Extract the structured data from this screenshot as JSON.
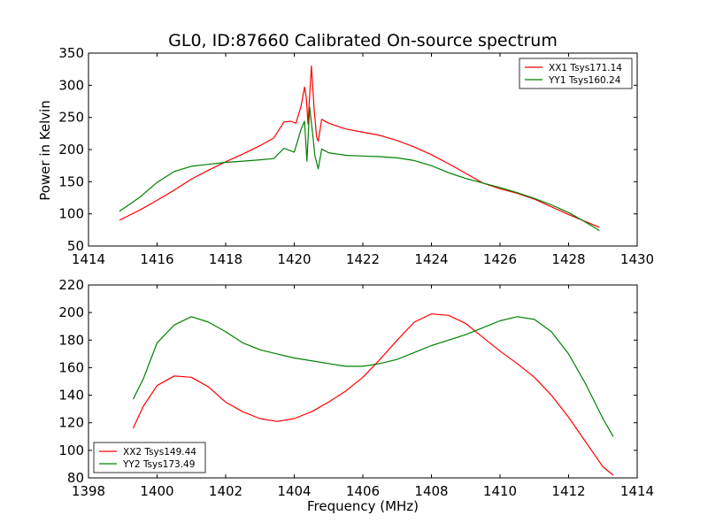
{
  "chart_data": [
    {
      "type": "line",
      "title": "GL0, ID:87660 Calibrated On-source spectrum",
      "xlabel": "",
      "ylabel": "Power in Kelvin",
      "xlim": [
        1414,
        1430
      ],
      "ylim": [
        50,
        350
      ],
      "xticks": [
        "1414",
        "1416",
        "1418",
        "1420",
        "1422",
        "1424",
        "1426",
        "1428",
        "1430"
      ],
      "yticks": [
        "50",
        "100",
        "150",
        "200",
        "250",
        "300",
        "350"
      ],
      "legend_position": "top-right",
      "grid": false,
      "series": [
        {
          "name": "XX1 Tsys171.14",
          "color": "#ff0000",
          "points": [
            [
              1414.9,
              90
            ],
            [
              1415.5,
              106
            ],
            [
              1416,
              121
            ],
            [
              1416.5,
              137
            ],
            [
              1417,
              154
            ],
            [
              1417.5,
              168
            ],
            [
              1418,
              181
            ],
            [
              1418.5,
              193
            ],
            [
              1419,
              206
            ],
            [
              1419.4,
              218
            ],
            [
              1419.7,
              243
            ],
            [
              1419.9,
              244
            ],
            [
              1420.05,
              241
            ],
            [
              1420.2,
              268
            ],
            [
              1420.3,
              297
            ],
            [
              1420.35,
              281
            ],
            [
              1420.4,
              240
            ],
            [
              1420.5,
              330
            ],
            [
              1420.58,
              262
            ],
            [
              1420.65,
              220
            ],
            [
              1420.7,
              213
            ],
            [
              1420.8,
              247
            ],
            [
              1421,
              241
            ],
            [
              1421.5,
              232
            ],
            [
              1422,
              227
            ],
            [
              1422.5,
              222
            ],
            [
              1423,
              214
            ],
            [
              1423.5,
              204
            ],
            [
              1424,
              192
            ],
            [
              1424.5,
              178
            ],
            [
              1425,
              163
            ],
            [
              1425.5,
              148
            ],
            [
              1426,
              139
            ],
            [
              1426.5,
              132
            ],
            [
              1427,
              123
            ],
            [
              1427.5,
              111
            ],
            [
              1428,
              99
            ],
            [
              1428.5,
              88
            ],
            [
              1428.9,
              79
            ]
          ]
        },
        {
          "name": "YY1 Tsys160.24",
          "color": "#008000",
          "points": [
            [
              1414.9,
              104
            ],
            [
              1415.5,
              126
            ],
            [
              1416,
              149
            ],
            [
              1416.5,
              166
            ],
            [
              1417,
              174
            ],
            [
              1417.5,
              177
            ],
            [
              1418,
              180
            ],
            [
              1418.5,
              182
            ],
            [
              1419,
              184
            ],
            [
              1419.4,
              186
            ],
            [
              1419.7,
              202
            ],
            [
              1420,
              196
            ],
            [
              1420.2,
              232
            ],
            [
              1420.3,
              244
            ],
            [
              1420.37,
              182
            ],
            [
              1420.45,
              266
            ],
            [
              1420.55,
              218
            ],
            [
              1420.6,
              191
            ],
            [
              1420.7,
              170
            ],
            [
              1420.8,
              201
            ],
            [
              1421,
              195
            ],
            [
              1421.5,
              191
            ],
            [
              1422,
              190
            ],
            [
              1422.5,
              189
            ],
            [
              1423,
              187
            ],
            [
              1423.5,
              183
            ],
            [
              1424,
              175
            ],
            [
              1424.5,
              164
            ],
            [
              1425,
              155
            ],
            [
              1425.5,
              148
            ],
            [
              1426,
              141
            ],
            [
              1426.5,
              133
            ],
            [
              1427,
              124
            ],
            [
              1427.5,
              114
            ],
            [
              1428,
              102
            ],
            [
              1428.5,
              87
            ],
            [
              1428.9,
              74
            ]
          ]
        }
      ]
    },
    {
      "type": "line",
      "title": "",
      "xlabel": "Frequency (MHz)",
      "ylabel": "",
      "xlim": [
        1398,
        1414
      ],
      "ylim": [
        80,
        220
      ],
      "xticks": [
        "1398",
        "1400",
        "1402",
        "1404",
        "1406",
        "1408",
        "1410",
        "1412",
        "1414"
      ],
      "yticks": [
        "80",
        "100",
        "120",
        "140",
        "160",
        "180",
        "200",
        "220"
      ],
      "legend_position": "bottom-left",
      "grid": false,
      "series": [
        {
          "name": "XX2 Tsys149.44",
          "color": "#ff0000",
          "points": [
            [
              1399.3,
              116
            ],
            [
              1399.6,
              132
            ],
            [
              1400,
              147
            ],
            [
              1400.5,
              154
            ],
            [
              1401,
              153
            ],
            [
              1401.5,
              146
            ],
            [
              1402,
              135
            ],
            [
              1402.5,
              128
            ],
            [
              1403,
              123
            ],
            [
              1403.5,
              121
            ],
            [
              1404,
              123
            ],
            [
              1404.5,
              128
            ],
            [
              1405,
              135
            ],
            [
              1405.5,
              143
            ],
            [
              1406,
              153
            ],
            [
              1406.5,
              166
            ],
            [
              1407,
              180
            ],
            [
              1407.5,
              193
            ],
            [
              1408,
              199
            ],
            [
              1408.5,
              198
            ],
            [
              1409,
              192
            ],
            [
              1409.5,
              182
            ],
            [
              1410,
              172
            ],
            [
              1410.5,
              163
            ],
            [
              1411,
              153
            ],
            [
              1411.5,
              140
            ],
            [
              1412,
              124
            ],
            [
              1412.5,
              106
            ],
            [
              1413,
              88
            ],
            [
              1413.3,
              82
            ]
          ]
        },
        {
          "name": "YY2 Tsys173.49",
          "color": "#008000",
          "points": [
            [
              1399.3,
              137
            ],
            [
              1399.6,
              152
            ],
            [
              1400,
              178
            ],
            [
              1400.5,
              191
            ],
            [
              1401,
              197
            ],
            [
              1401.5,
              193
            ],
            [
              1402,
              186
            ],
            [
              1402.5,
              178
            ],
            [
              1403,
              173
            ],
            [
              1403.5,
              170
            ],
            [
              1404,
              167
            ],
            [
              1404.5,
              165
            ],
            [
              1405,
              163
            ],
            [
              1405.5,
              161
            ],
            [
              1406,
              161
            ],
            [
              1406.5,
              163
            ],
            [
              1407,
              166
            ],
            [
              1407.5,
              171
            ],
            [
              1408,
              176
            ],
            [
              1408.5,
              180
            ],
            [
              1409,
              184
            ],
            [
              1409.5,
              189
            ],
            [
              1410,
              194
            ],
            [
              1410.5,
              197
            ],
            [
              1411,
              195
            ],
            [
              1411.5,
              186
            ],
            [
              1412,
              170
            ],
            [
              1412.5,
              148
            ],
            [
              1413,
              123
            ],
            [
              1413.3,
              110
            ]
          ]
        }
      ]
    }
  ]
}
